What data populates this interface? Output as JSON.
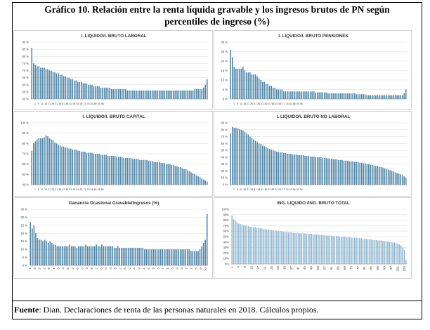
{
  "title_line1": "Gráfico 10. Relación entre la renta líquida gravable y los ingresos brutos de PN  según",
  "title_line2": "percentiles de ingreso (%)",
  "source_label": "Fuente",
  "source_text": ": Dian. Declaraciones de renta de las personas naturales en 2018. Cálculos propios.",
  "colors": {
    "bar": "#4f86a8",
    "bar_light": "#8fb6cf",
    "grid": "#d9d9d9",
    "axis": "#888888"
  },
  "chart_data": [
    {
      "type": "bar",
      "title": "I. LIQUIDO/I. BRUTO LABORAL",
      "ylim": [
        50,
        90
      ],
      "yticks": [
        "50 %",
        "55 %",
        "60 %",
        "65 %",
        "70 %",
        "75 %",
        "80 %",
        "85 %",
        "90 %"
      ],
      "xticks": [
        "1",
        "6",
        "11",
        "16",
        "21",
        "26",
        "31",
        "36",
        "41",
        "46",
        "51",
        "56",
        "61",
        "66",
        "71",
        "76",
        "81",
        "86",
        "91",
        "96"
      ],
      "values": [
        86,
        75,
        74,
        73,
        73,
        72,
        72,
        72,
        71,
        71,
        70,
        70,
        69,
        69,
        68,
        68,
        67,
        67,
        66,
        66,
        65,
        65,
        64,
        64,
        63,
        63,
        62,
        62,
        62,
        61,
        61,
        61,
        60,
        60,
        60,
        59,
        59,
        59,
        59,
        58,
        58,
        58,
        58,
        58,
        58,
        57,
        57,
        57,
        57,
        57,
        57,
        57,
        57,
        57,
        56,
        56,
        56,
        56,
        56,
        56,
        56,
        56,
        56,
        56,
        56,
        56,
        56,
        56,
        56,
        56,
        56,
        56,
        56,
        56,
        56,
        56,
        56,
        56,
        56,
        56,
        56,
        56,
        56,
        56,
        56,
        56,
        56,
        56,
        56,
        56,
        56,
        56,
        57,
        57,
        57,
        57,
        57,
        58,
        60,
        64
      ]
    },
    {
      "type": "bar",
      "title": "I. LIQUIDO/I. BRUTO PENSIONES",
      "ylim": [
        0,
        30
      ],
      "yticks": [
        "0 %",
        "5 %",
        "10 %",
        "15 %",
        "20 %",
        "25 %",
        "30 %"
      ],
      "xticks": [
        "1",
        "6",
        "11",
        "16",
        "21",
        "26",
        "31",
        "36",
        "41",
        "46",
        "51",
        "56",
        "61",
        "66",
        "71",
        "76",
        "81",
        "86",
        "91",
        "96"
      ],
      "values": [
        26,
        22,
        17,
        16,
        16,
        16,
        16,
        17,
        15,
        14,
        14,
        14,
        13,
        13,
        13,
        12,
        11,
        10,
        9,
        9,
        8,
        8,
        7,
        7,
        6,
        6,
        5,
        5,
        5,
        5,
        4,
        4,
        4,
        4,
        4,
        4,
        4,
        4,
        4,
        4,
        4,
        4,
        4,
        4,
        4,
        4,
        4,
        4,
        3.5,
        3.5,
        3.5,
        3.5,
        3.5,
        3.5,
        3.5,
        3,
        3,
        3,
        3,
        3,
        3,
        3,
        3,
        3,
        3,
        3,
        3,
        3,
        3,
        3,
        3,
        2.5,
        2.5,
        2.5,
        2.5,
        2.5,
        2.5,
        2,
        2,
        2,
        2,
        2,
        2,
        2,
        2,
        2,
        2,
        2,
        2,
        2,
        2,
        2,
        2,
        2,
        2,
        2,
        2,
        2,
        3,
        5
      ]
    },
    {
      "type": "bar",
      "title": "I. LIQUIDO/I. BRUTO CAPITAL",
      "ylim": [
        40,
        100
      ],
      "yticks": [
        "40 %",
        "50 %",
        "60 %",
        "70 %",
        "80 %",
        "90 %",
        "100 %"
      ],
      "xticks": [
        "1",
        "6",
        "11",
        "16",
        "21",
        "26",
        "31",
        "36",
        "41",
        "46",
        "51",
        "56",
        "61",
        "66",
        "71",
        "76",
        "81",
        "86",
        "91",
        "96"
      ],
      "values": [
        73,
        80,
        82,
        84,
        85,
        85,
        85,
        86,
        88,
        87,
        85,
        84,
        83,
        81,
        80,
        79,
        78,
        77,
        77,
        76,
        76,
        75,
        75,
        74,
        74,
        74,
        73,
        73,
        72,
        72,
        72,
        71,
        71,
        71,
        71,
        70,
        70,
        70,
        70,
        69,
        69,
        69,
        69,
        68,
        68,
        68,
        68,
        68,
        67,
        67,
        67,
        67,
        66,
        66,
        66,
        66,
        66,
        65,
        65,
        65,
        65,
        64,
        64,
        64,
        64,
        64,
        63,
        63,
        63,
        62,
        62,
        62,
        62,
        61,
        61,
        61,
        60,
        60,
        60,
        59,
        59,
        58,
        58,
        57,
        57,
        56,
        55,
        55,
        54,
        53,
        52,
        51,
        50,
        49,
        48,
        47,
        46,
        45,
        44,
        43
      ]
    },
    {
      "type": "bar",
      "title": "I. LIQUIDO/I. BRUTO NO LABORAL",
      "ylim": [
        0,
        90
      ],
      "yticks": [
        "0 %",
        "10 %",
        "20 %",
        "30 %",
        "40 %",
        "50 %",
        "60 %",
        "70 %",
        "80 %",
        "90 %"
      ],
      "xticks": [
        "1",
        "6",
        "11",
        "16",
        "21",
        "26",
        "31",
        "36",
        "41",
        "46",
        "51",
        "56",
        "61",
        "66",
        "71",
        "76",
        "81",
        "86",
        "91",
        "96"
      ],
      "values": [
        75,
        84,
        83,
        83,
        82,
        81,
        80,
        79,
        77,
        75,
        73,
        70,
        68,
        66,
        64,
        62,
        60,
        59,
        57,
        56,
        55,
        53,
        52,
        51,
        50,
        49,
        48,
        48,
        47,
        47,
        46,
        46,
        45,
        45,
        45,
        44,
        44,
        44,
        43,
        43,
        43,
        43,
        42,
        42,
        42,
        41,
        41,
        41,
        40,
        40,
        40,
        40,
        39,
        39,
        39,
        38,
        38,
        38,
        37,
        37,
        37,
        36,
        36,
        36,
        35,
        35,
        35,
        34,
        34,
        34,
        33,
        33,
        33,
        32,
        32,
        31,
        31,
        30,
        30,
        29,
        29,
        28,
        27,
        27,
        26,
        26,
        25,
        24,
        23,
        22,
        21,
        20,
        19,
        18,
        17,
        16,
        15,
        14,
        12,
        10
      ]
    },
    {
      "type": "bar",
      "title": "Ganancia Ocasional Gravable/Ingresos (%)",
      "ylim": [
        0,
        35
      ],
      "yticks": [
        "0 %",
        "5 %",
        "10 %",
        "15 %",
        "20 %",
        "25 %",
        "30 %",
        "35 %"
      ],
      "xticks": [
        "1",
        "5",
        "9",
        "2",
        "6",
        "1",
        "0",
        "4",
        "8",
        "2",
        "6",
        "0",
        "4",
        "8",
        "2",
        "6",
        "0",
        "4",
        "8",
        "2",
        "6",
        "0",
        "4",
        "9",
        "1",
        "5",
        "9",
        "3",
        "7",
        "1",
        "5",
        "9",
        "3",
        "7",
        "1",
        "5",
        "9",
        "10"
      ],
      "values": [
        27,
        23,
        25,
        20,
        17,
        16,
        16,
        15,
        16,
        15,
        14,
        15,
        14,
        13,
        13,
        12,
        12,
        12,
        12,
        12,
        12,
        12,
        13,
        12,
        12,
        12,
        11,
        12,
        12,
        12,
        12,
        13,
        12,
        12,
        12,
        12,
        12,
        13,
        12,
        12,
        13,
        12,
        12,
        12,
        12,
        12,
        12,
        11,
        11,
        12,
        11,
        11,
        11,
        11,
        11,
        11,
        11,
        11,
        11,
        11,
        11,
        11,
        11,
        11,
        10,
        10,
        10,
        10,
        10,
        10,
        10,
        10,
        10,
        10,
        10,
        10,
        10,
        10,
        10,
        10,
        10,
        10,
        10,
        10,
        10,
        10,
        10,
        10,
        10,
        10,
        9,
        9,
        9,
        9,
        9,
        10,
        12,
        14,
        16,
        32
      ]
    },
    {
      "type": "bar",
      "title": "ING. LIQUIDO /ING. BRUTO TOTAL",
      "ylim": [
        0,
        100
      ],
      "yticks": [
        "0%",
        "10%",
        "20%",
        "30%",
        "40%",
        "50%",
        "60%",
        "70%",
        "80%",
        "90%",
        "100%"
      ],
      "xticks": [
        "1",
        "5",
        "9",
        "13",
        "17",
        "21",
        "25",
        "29",
        "33",
        "37",
        "41",
        "45",
        "49",
        "53",
        "57",
        "61",
        "65",
        "69",
        "73",
        "77",
        "81",
        "85",
        "89",
        "93",
        "97",
        "101",
        "105"
      ],
      "values": [
        88,
        82,
        79,
        76,
        74,
        73,
        72,
        71,
        70,
        70,
        69,
        68,
        68,
        67,
        67,
        66,
        66,
        65,
        65,
        64,
        64,
        63,
        63,
        62,
        62,
        61,
        61,
        61,
        60,
        60,
        60,
        59,
        59,
        59,
        58,
        58,
        58,
        57,
        57,
        57,
        57,
        56,
        56,
        56,
        56,
        55,
        55,
        55,
        55,
        54,
        54,
        54,
        54,
        53,
        53,
        53,
        53,
        52,
        52,
        52,
        52,
        51,
        51,
        51,
        51,
        50,
        50,
        50,
        50,
        49,
        49,
        49,
        48,
        48,
        48,
        48,
        47,
        47,
        47,
        46,
        46,
        46,
        45,
        45,
        45,
        44,
        44,
        44,
        43,
        43,
        43,
        42,
        42,
        41,
        41,
        40,
        40,
        39,
        39,
        38,
        37,
        36,
        34,
        30,
        26,
        8
      ]
    }
  ]
}
